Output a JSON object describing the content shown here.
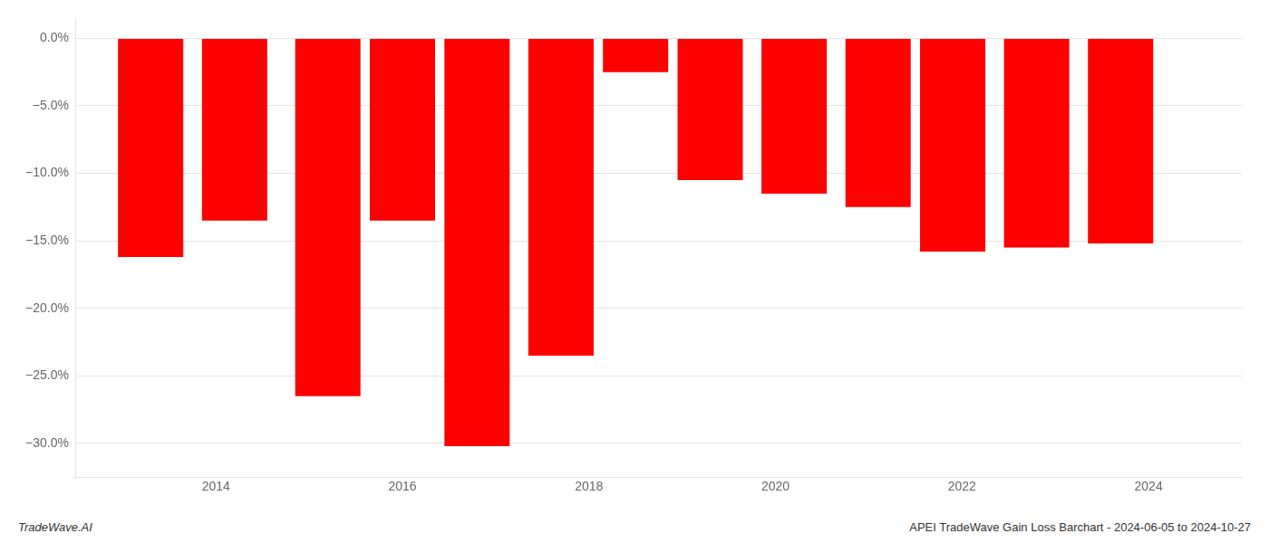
{
  "chart_data": {
    "type": "bar",
    "x": [
      2013.3,
      2014.2,
      2015.2,
      2016.0,
      2016.8,
      2017.7,
      2018.5,
      2019.3,
      2020.2,
      2021.1,
      2021.9,
      2022.8,
      2023.7
    ],
    "values": [
      -16.2,
      -13.5,
      -26.5,
      -13.5,
      -30.2,
      -23.5,
      -2.5,
      -10.5,
      -11.5,
      -12.5,
      -15.8,
      -15.5,
      -15.2
    ],
    "color": "#ff0000",
    "xlim": [
      2012.5,
      2025.0
    ],
    "xticks": [
      2014,
      2016,
      2018,
      2020,
      2022,
      2024
    ],
    "ylim": [
      -32.5,
      1.5
    ],
    "yticks": [
      {
        "value": 0.0,
        "label": "0.0%"
      },
      {
        "value": -5.0,
        "label": "−5.0%"
      },
      {
        "value": -10.0,
        "label": "−10.0%"
      },
      {
        "value": -15.0,
        "label": "−15.0%"
      },
      {
        "value": -20.0,
        "label": "−20.0%"
      },
      {
        "value": -25.0,
        "label": "−25.0%"
      },
      {
        "value": -30.0,
        "label": "−30.0%"
      }
    ],
    "grid": true,
    "annotations": [
      "TradeWave.AI",
      "APEI TradeWave Gain Loss Barchart - 2024-06-05 to 2024-10-27"
    ]
  }
}
